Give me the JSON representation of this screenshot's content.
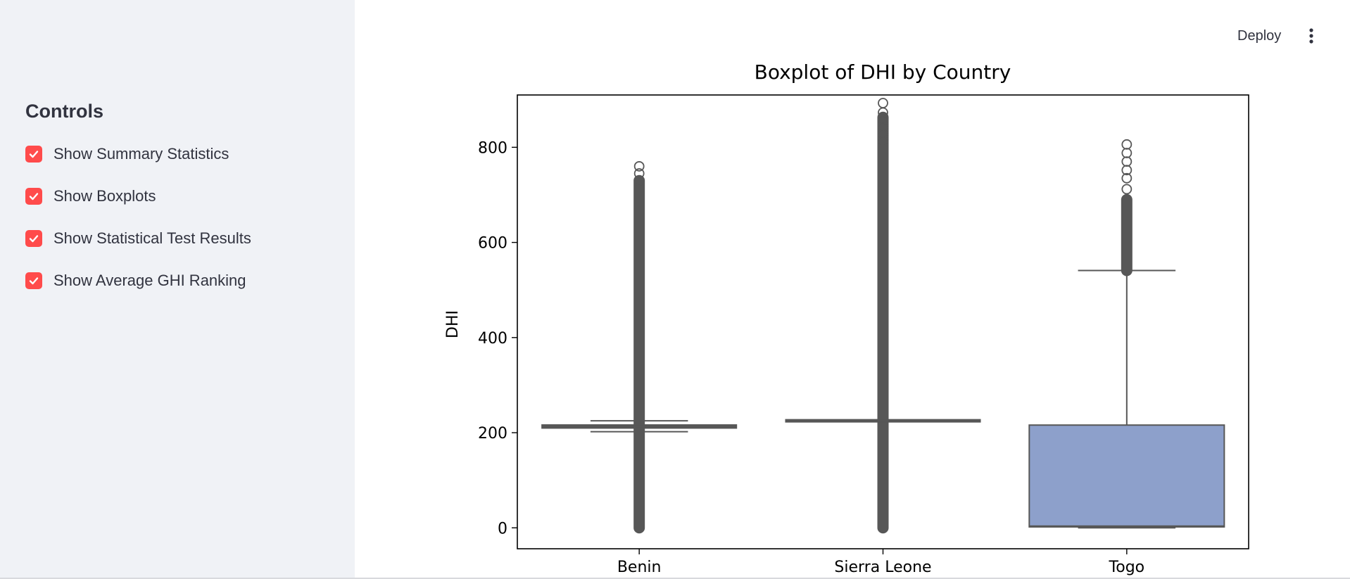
{
  "sidebar": {
    "title": "Controls",
    "checkboxes": [
      {
        "label": "Show Summary Statistics",
        "checked": true
      },
      {
        "label": "Show Boxplots",
        "checked": true
      },
      {
        "label": "Show Statistical Test Results",
        "checked": true
      },
      {
        "label": "Show Average GHI Ranking",
        "checked": true
      }
    ]
  },
  "header": {
    "deploy_label": "Deploy",
    "menu_icon": "vertical-ellipsis-icon"
  },
  "colors": {
    "accent": "#ff4b4b",
    "sidebar_bg": "#f0f2f6",
    "box_fill": "#8da0cb",
    "box_edge": "#575757"
  },
  "chart_data": {
    "type": "boxplot",
    "title": "Boxplot of DHI by Country",
    "xlabel": "",
    "ylabel": "DHI",
    "categories": [
      "Benin",
      "Sierra Leone",
      "Togo"
    ],
    "ylim": [
      -44,
      910
    ],
    "yticks": [
      0,
      200,
      400,
      600,
      800
    ],
    "grid": false,
    "boxes": [
      {
        "name": "Benin",
        "q1": 212,
        "median": 213,
        "q3": 214,
        "whisker_low": 202,
        "whisker_high": 225,
        "outlier_min": 0,
        "outlier_max": 760
      },
      {
        "name": "Sierra Leone",
        "q1": 225,
        "median": 225,
        "q3": 225,
        "whisker_low": 225,
        "whisker_high": 225,
        "outlier_min": 0,
        "outlier_max": 893
      },
      {
        "name": "Togo",
        "q1": 2,
        "median": 3,
        "q3": 216,
        "whisker_low": 0,
        "whisker_high": 541,
        "outlier_min": 541,
        "outlier_max": 806
      }
    ]
  }
}
